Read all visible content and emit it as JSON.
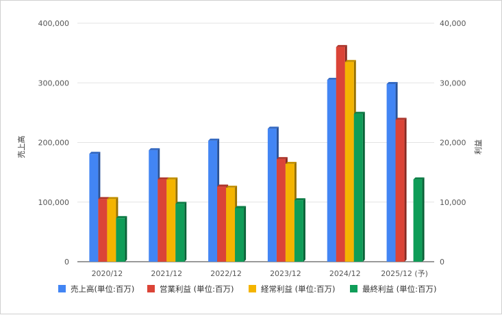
{
  "chart_data": {
    "type": "bar",
    "style": "3d-bar",
    "categories": [
      "2020/12",
      "2021/12",
      "2022/12",
      "2023/12",
      "2024/12",
      "2025/12 (予)"
    ],
    "y_left": {
      "label": "売上高",
      "ylim": [
        0,
        400000
      ],
      "ticks": [
        "0",
        "100,000",
        "200,000",
        "300,000",
        "400,000"
      ]
    },
    "y_right": {
      "label": "利益",
      "ylim": [
        0,
        40000
      ],
      "ticks": [
        "0",
        "10,000",
        "20,000",
        "30,000",
        "40,000"
      ]
    },
    "grid": true,
    "legend_position": "bottom",
    "series": [
      {
        "name": "売上高(単位:百万)",
        "axis": "left",
        "color": "#4285F4",
        "values": [
          181000,
          187000,
          203000,
          223000,
          305000,
          298000
        ]
      },
      {
        "name": "営業利益 (単位:百万)",
        "axis": "right",
        "color": "#DB4437",
        "values": [
          10500,
          13800,
          12600,
          17200,
          36000,
          23800
        ]
      },
      {
        "name": "経常利益 (単位:百万)",
        "axis": "right",
        "color": "#F4B400",
        "values": [
          10500,
          13800,
          12400,
          16400,
          33500,
          null
        ]
      },
      {
        "name": "最終利益 (単位:百万)",
        "axis": "right",
        "color": "#0F9D58",
        "values": [
          7300,
          9700,
          9000,
          10300,
          24800,
          13800
        ]
      }
    ]
  }
}
